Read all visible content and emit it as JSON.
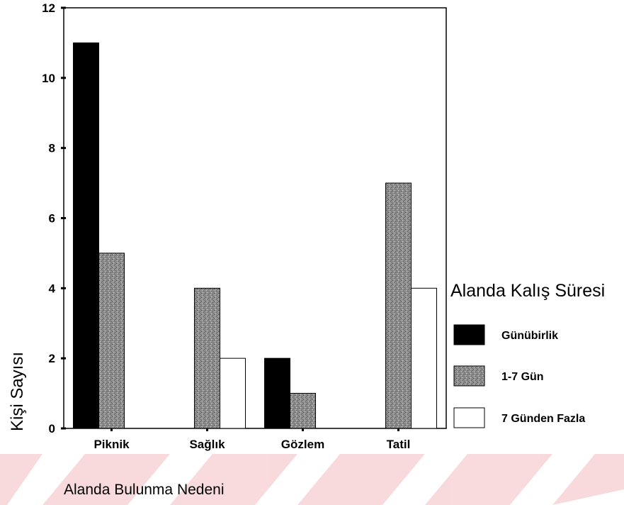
{
  "chart_data": {
    "type": "bar",
    "categories": [
      "Piknik",
      "Sağlık",
      "Gözlem",
      "Tatil"
    ],
    "series": [
      {
        "name": "Günübirlik",
        "values": [
          11,
          0,
          2,
          0
        ],
        "color": "#000000",
        "fill": "solid"
      },
      {
        "name": "1-7 Gün",
        "values": [
          5,
          4,
          1,
          7
        ],
        "color": "#8a8a8a",
        "fill": "stipple"
      },
      {
        "name": "7 Günden Fazla",
        "values": [
          0,
          2,
          0,
          4
        ],
        "color": "#ffffff",
        "fill": "outline"
      }
    ],
    "xlabel": "Alanda Bulunma Nedeni",
    "ylabel": "Kişi Sayısı",
    "ylim": [
      0,
      12
    ],
    "yticks": [
      0,
      2,
      4,
      6,
      8,
      10,
      12
    ],
    "legend": {
      "title": "Alanda Kalış Süresi",
      "position": "right"
    },
    "grid": false
  }
}
